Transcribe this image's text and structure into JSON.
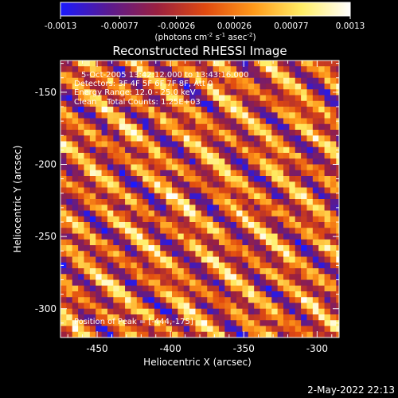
{
  "colorbar": {
    "tick_labels": [
      "-0.0013",
      "-0.00077",
      "-0.00026",
      "0.00026",
      "0.00077",
      "0.0013"
    ],
    "unit_parts": [
      "(photons cm",
      "-2",
      " s",
      "-1",
      " asec",
      "-2",
      ")"
    ],
    "colors": [
      "#1a1aff",
      "#5a1a90",
      "#9a2040",
      "#e04a10",
      "#ff9a1a",
      "#ffee66",
      "#ffffff"
    ]
  },
  "chart_data": {
    "type": "heatmap",
    "title": "Reconstructed RHESSI Image",
    "xlabel": "Heliocentric X (arcsec)",
    "ylabel": "Heliocentric Y (arcsec)",
    "xlim": [
      -475,
      -285
    ],
    "ylim": [
      -320,
      -128
    ],
    "x_ticks": [
      "-450",
      "-400",
      "-350",
      "-300"
    ],
    "y_ticks": [
      "-150",
      "-200",
      "-250",
      "-300"
    ],
    "x_tick_values": [
      -450,
      -400,
      -350,
      -300
    ],
    "y_tick_values": [
      -150,
      -200,
      -250,
      -300
    ],
    "value_range": [
      -0.0013,
      0.0013
    ],
    "pixel_size_arcsec": 4,
    "pattern": "diagonal fringe stripes running upper-left to lower-right",
    "annotations": [
      "5-Oct-2005 13:42:12.000 to 13:43:16.000",
      "Detectors: 3F 4F 5F 6F 7F 8F, Att 0",
      "Energy Range: 12.0 - 25.0 keV",
      "Clean    Total Counts: 1.25E+03"
    ],
    "peak_label": "Position of Peak = [-444,-175]"
  },
  "footer": {
    "date": "2-May-2022 22:13"
  }
}
